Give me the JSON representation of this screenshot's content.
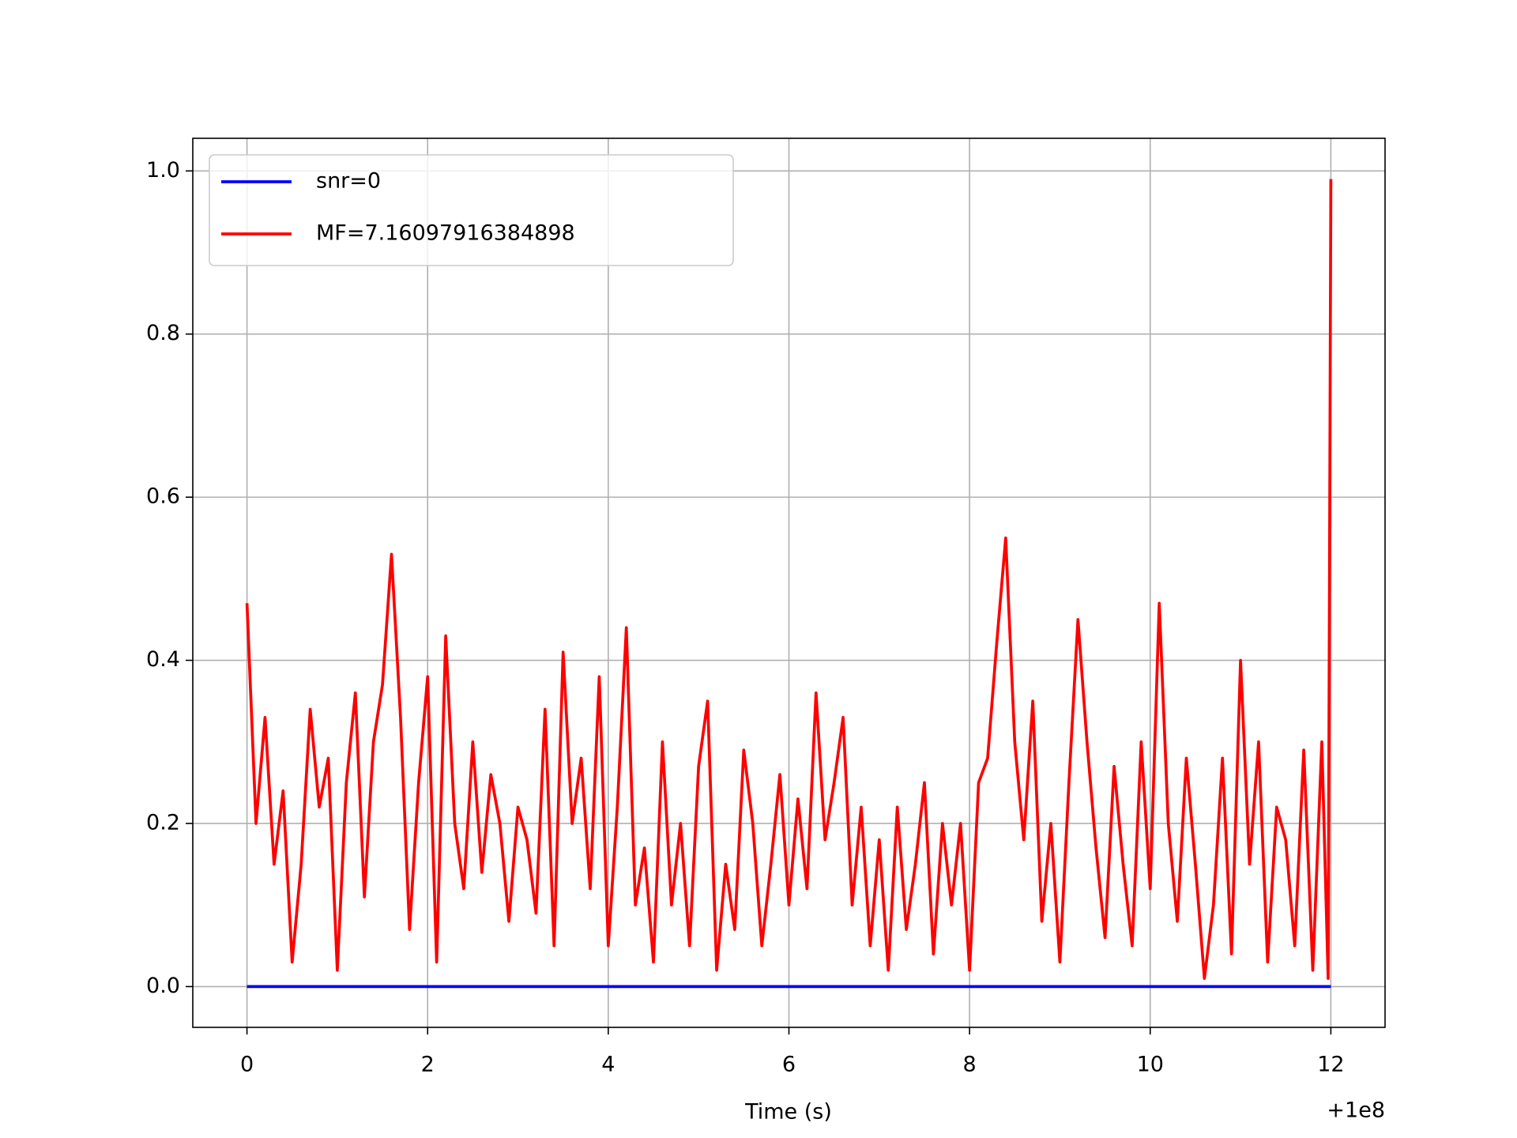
{
  "chart_data": {
    "type": "line",
    "xlabel": "Time (s)",
    "x_offset_label": "+1e8",
    "xlim": [
      -0.6,
      12.6
    ],
    "xticks": [
      0,
      2,
      4,
      6,
      8,
      10,
      12
    ],
    "ylim": [
      -0.05,
      1.04
    ],
    "yticks": [
      {
        "value": 0,
        "label": "0.0"
      },
      {
        "value": 0.2,
        "label": "0.2"
      },
      {
        "value": 0.4,
        "label": "0.4"
      },
      {
        "value": 0.6,
        "label": "0.6"
      },
      {
        "value": 0.8,
        "label": "0.8"
      },
      {
        "value": 1,
        "label": "1.0"
      }
    ],
    "grid": true,
    "legend": "upper left",
    "series": [
      {
        "name": "snr=0",
        "color": "#0000ff",
        "x": [
          0,
          12
        ],
        "values": [
          0,
          0
        ]
      },
      {
        "name": "MF=7.16097916384898",
        "color": "#ff0000",
        "x": [
          0,
          0.1,
          0.2,
          0.3,
          0.4,
          0.5,
          0.6,
          0.7,
          0.8,
          0.9,
          1,
          1.1,
          1.2,
          1.3,
          1.4,
          1.5,
          1.6,
          1.7,
          1.8,
          1.9,
          2,
          2.1,
          2.2,
          2.3,
          2.4,
          2.5,
          2.6,
          2.7,
          2.8,
          2.9,
          3,
          3.1,
          3.2,
          3.3,
          3.4,
          3.5,
          3.6,
          3.7,
          3.8,
          3.9,
          4,
          4.1,
          4.2,
          4.3,
          4.4,
          4.5,
          4.6,
          4.7,
          4.8,
          4.9,
          5,
          5.1,
          5.2,
          5.3,
          5.4,
          5.5,
          5.6,
          5.7,
          5.8,
          5.9,
          6,
          6.1,
          6.2,
          6.3,
          6.4,
          6.5,
          6.6,
          6.7,
          6.8,
          6.9,
          7,
          7.1,
          7.2,
          7.3,
          7.4,
          7.5,
          7.6,
          7.7,
          7.8,
          7.9,
          8,
          8.1,
          8.2,
          8.3,
          8.4,
          8.5,
          8.6,
          8.7,
          8.8,
          8.9,
          9,
          9.1,
          9.2,
          9.3,
          9.4,
          9.5,
          9.6,
          9.7,
          9.8,
          9.9,
          10,
          10.1,
          10.2,
          10.3,
          10.4,
          10.5,
          10.6,
          10.7,
          10.8,
          10.9,
          11,
          11.1,
          11.2,
          11.3,
          11.4,
          11.5,
          11.6,
          11.7,
          11.8,
          11.9,
          11.97,
          12
        ],
        "values": [
          0.47,
          0.2,
          0.33,
          0.15,
          0.24,
          0.03,
          0.15,
          0.34,
          0.22,
          0.28,
          0.02,
          0.25,
          0.36,
          0.11,
          0.3,
          0.37,
          0.53,
          0.33,
          0.07,
          0.25,
          0.38,
          0.03,
          0.43,
          0.2,
          0.12,
          0.3,
          0.14,
          0.26,
          0.2,
          0.08,
          0.22,
          0.18,
          0.09,
          0.34,
          0.05,
          0.41,
          0.2,
          0.28,
          0.12,
          0.38,
          0.05,
          0.22,
          0.44,
          0.1,
          0.17,
          0.03,
          0.3,
          0.1,
          0.2,
          0.05,
          0.27,
          0.35,
          0.02,
          0.15,
          0.07,
          0.29,
          0.2,
          0.05,
          0.15,
          0.26,
          0.1,
          0.23,
          0.12,
          0.36,
          0.18,
          0.25,
          0.33,
          0.1,
          0.22,
          0.05,
          0.18,
          0.02,
          0.22,
          0.07,
          0.15,
          0.25,
          0.04,
          0.2,
          0.1,
          0.2,
          0.02,
          0.25,
          0.28,
          0.42,
          0.55,
          0.3,
          0.18,
          0.35,
          0.08,
          0.2,
          0.03,
          0.25,
          0.45,
          0.3,
          0.17,
          0.06,
          0.27,
          0.15,
          0.05,
          0.3,
          0.12,
          0.47,
          0.2,
          0.08,
          0.28,
          0.15,
          0.01,
          0.1,
          0.28,
          0.04,
          0.4,
          0.15,
          0.3,
          0.03,
          0.22,
          0.18,
          0.05,
          0.29,
          0.02,
          0.3,
          0.01,
          0.99
        ]
      }
    ]
  }
}
